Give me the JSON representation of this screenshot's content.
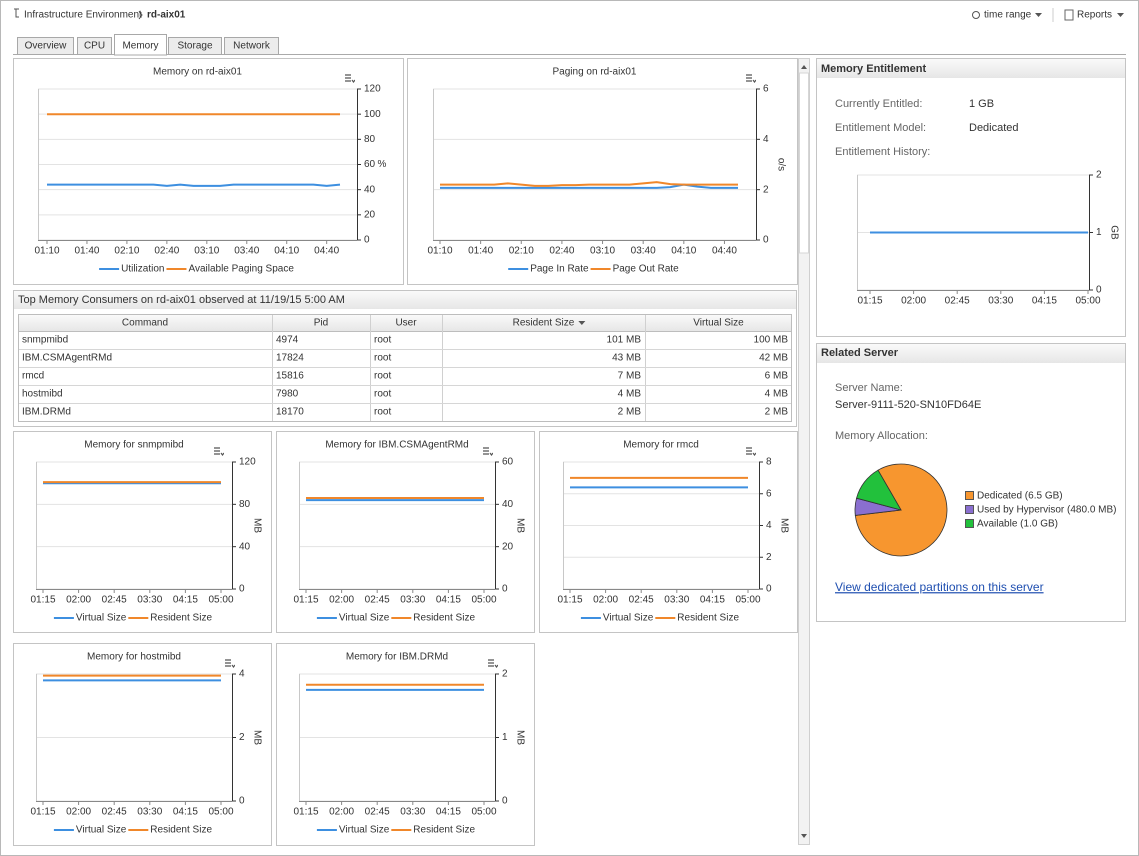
{
  "breadcrumb": {
    "parent": "Infrastructure Environment",
    "current": "rd-aix01"
  },
  "toolbar": [
    "time range",
    "Reports"
  ],
  "tabs": {
    "items": [
      "Overview",
      "CPU",
      "Memory",
      "Storage",
      "Network"
    ],
    "active": 2
  },
  "table": {
    "title": "Top Memory Consumers on rd-aix01 observed at 11/19/15 5:00 AM",
    "columns": [
      "Command",
      "Pid",
      "User",
      "Resident Size",
      "Virtual Size"
    ],
    "sort_column": 3,
    "rows": [
      [
        "snmpmibd",
        4974,
        "root",
        "101 MB",
        "100 MB"
      ],
      [
        "IBM.CSMAgentRMd",
        17824,
        "root",
        "43 MB",
        "42 MB"
      ],
      [
        "rmcd",
        15816,
        "root",
        "7 MB",
        "6 MB"
      ],
      [
        "hostmibd",
        7980,
        "root",
        "4 MB",
        "4 MB"
      ],
      [
        "IBM.DRMd",
        18170,
        "root",
        "2 MB",
        "2 MB"
      ]
    ]
  },
  "memory_entitlement": {
    "title": "Memory Entitlement",
    "fields": [
      {
        "label": "Currently Entitled:",
        "value": "1 GB"
      },
      {
        "label": "Entitlement Model:",
        "value": "Dedicated"
      }
    ],
    "history_label": "Entitlement History:"
  },
  "related_server": {
    "title": "Related Server",
    "server_name_label": "Server Name:",
    "server_name": "Server-9111-520-SN10FD64E",
    "allocation_label": "Memory Allocation:",
    "link": "View dedicated partitions on this server"
  },
  "chart_data": [
    {
      "type": "line",
      "title": "Memory on rd-aix01",
      "categories": [
        "01:10",
        null,
        null,
        "01:40",
        null,
        null,
        "02:10",
        null,
        null,
        "02:40",
        null,
        null,
        "03:10",
        null,
        null,
        "03:40",
        null,
        null,
        "04:10",
        null,
        null,
        "04:40",
        null
      ],
      "series": [
        {
          "name": "Utilization",
          "color": "#3d8fe0",
          "values": [
            44,
            44,
            44,
            44,
            44,
            44,
            44,
            44,
            44,
            43,
            44,
            43,
            43,
            43,
            44,
            44,
            44,
            44,
            44,
            44,
            44,
            43,
            44
          ]
        },
        {
          "name": "Available Paging Space",
          "color": "#f0872a",
          "values": [
            100,
            100,
            100,
            100,
            100,
            100,
            100,
            100,
            100,
            100,
            100,
            100,
            100,
            100,
            100,
            100,
            100,
            100,
            100,
            100,
            100,
            100,
            100
          ]
        }
      ],
      "ylim": [
        0,
        120
      ],
      "yticks": [
        0,
        20,
        40,
        60,
        80,
        100,
        120
      ],
      "ylabel": "%",
      "grid": true
    },
    {
      "type": "line",
      "title": "Paging on rd-aix01",
      "categories": [
        "01:10",
        null,
        null,
        "01:40",
        null,
        null,
        "02:10",
        null,
        null,
        "02:40",
        null,
        null,
        "03:10",
        null,
        null,
        "03:40",
        null,
        null,
        "04:10",
        null,
        null,
        "04:40",
        null
      ],
      "series": [
        {
          "name": "Page In Rate",
          "color": "#3d8fe0",
          "values": [
            2.07,
            2.07,
            2.07,
            2.07,
            2.07,
            2.07,
            2.07,
            2.07,
            2.07,
            2.07,
            2.07,
            2.07,
            2.07,
            2.07,
            2.07,
            2.07,
            2.07,
            2.1,
            2.2,
            2.12,
            2.07,
            2.07,
            2.07
          ]
        },
        {
          "name": "Page Out Rate",
          "color": "#f0872a",
          "values": [
            2.2,
            2.2,
            2.2,
            2.2,
            2.2,
            2.25,
            2.2,
            2.15,
            2.15,
            2.18,
            2.18,
            2.2,
            2.2,
            2.2,
            2.2,
            2.25,
            2.3,
            2.22,
            2.2,
            2.2,
            2.2,
            2.2,
            2.2
          ]
        }
      ],
      "ylim": [
        0,
        6
      ],
      "yticks": [
        0,
        2,
        4,
        6
      ],
      "ylabel": "o/s",
      "grid": true
    },
    {
      "type": "line",
      "categories": [
        "01:15",
        null,
        null,
        "02:00",
        null,
        null,
        "02:45",
        null,
        null,
        "03:30",
        null,
        null,
        "04:15",
        null,
        null,
        "05:00"
      ],
      "values": [
        1,
        1,
        1,
        1,
        1,
        1,
        1,
        1,
        1,
        1,
        1,
        1,
        1,
        1,
        1,
        1
      ],
      "color": "#3d8fe0",
      "ylim": [
        0,
        2
      ],
      "yticks": [
        0,
        1,
        2
      ],
      "ylabel": "GB",
      "grid": true
    },
    {
      "type": "line",
      "title": "Memory for snmpmibd",
      "categories": [
        "01:15",
        null,
        null,
        "02:00",
        null,
        null,
        "02:45",
        null,
        null,
        "03:30",
        null,
        null,
        "04:15",
        null,
        null,
        "05:00"
      ],
      "series": [
        {
          "name": "Virtual Size",
          "color": "#3d8fe0",
          "values": [
            100,
            100,
            100,
            100,
            100,
            100,
            100,
            100,
            100,
            100,
            100,
            100,
            100,
            100,
            100,
            100
          ]
        },
        {
          "name": "Resident Size",
          "color": "#f0872a",
          "values": [
            101,
            101,
            101,
            101,
            101,
            101,
            101,
            101,
            101,
            101,
            101,
            101,
            101,
            101,
            101,
            101
          ]
        }
      ],
      "ylim": [
        0,
        120
      ],
      "yticks": [
        0,
        40,
        80,
        120
      ],
      "ylabel": "MB",
      "grid": true
    },
    {
      "type": "line",
      "title": "Memory for IBM.CSMAgentRMd",
      "categories": [
        "01:15",
        null,
        null,
        "02:00",
        null,
        null,
        "02:45",
        null,
        null,
        "03:30",
        null,
        null,
        "04:15",
        null,
        null,
        "05:00"
      ],
      "series": [
        {
          "name": "Virtual Size",
          "color": "#3d8fe0",
          "values": [
            42,
            42,
            42,
            42,
            42,
            42,
            42,
            42,
            42,
            42,
            42,
            42,
            42,
            42,
            42,
            42
          ]
        },
        {
          "name": "Resident Size",
          "color": "#f0872a",
          "values": [
            43,
            43,
            43,
            43,
            43,
            43,
            43,
            43,
            43,
            43,
            43,
            43,
            43,
            43,
            43,
            43
          ]
        }
      ],
      "ylim": [
        0,
        60
      ],
      "yticks": [
        0,
        20,
        40,
        60
      ],
      "ylabel": "MB",
      "grid": true
    },
    {
      "type": "line",
      "title": "Memory for rmcd",
      "categories": [
        "01:15",
        null,
        null,
        "02:00",
        null,
        null,
        "02:45",
        null,
        null,
        "03:30",
        null,
        null,
        "04:15",
        null,
        null,
        "05:00"
      ],
      "series": [
        {
          "name": "Virtual Size",
          "color": "#3d8fe0",
          "values": [
            6.4,
            6.4,
            6.4,
            6.4,
            6.4,
            6.4,
            6.4,
            6.4,
            6.4,
            6.4,
            6.4,
            6.4,
            6.4,
            6.4,
            6.4,
            6.4
          ]
        },
        {
          "name": "Resident Size",
          "color": "#f0872a",
          "values": [
            7,
            7,
            7,
            7,
            7,
            7,
            7,
            7,
            7,
            7,
            7,
            7,
            7,
            7,
            7,
            7
          ]
        }
      ],
      "ylim": [
        0,
        8
      ],
      "yticks": [
        0,
        2,
        4,
        6,
        8
      ],
      "ylabel": "MB",
      "grid": true
    },
    {
      "type": "line",
      "title": "Memory for hostmibd",
      "categories": [
        "01:15",
        null,
        null,
        "02:00",
        null,
        null,
        "02:45",
        null,
        null,
        "03:30",
        null,
        null,
        "04:15",
        null,
        null,
        "05:00"
      ],
      "series": [
        {
          "name": "Virtual Size",
          "color": "#3d8fe0",
          "values": [
            3.8,
            3.8,
            3.8,
            3.8,
            3.8,
            3.8,
            3.8,
            3.8,
            3.8,
            3.8,
            3.8,
            3.8,
            3.8,
            3.8,
            3.8,
            3.8
          ]
        },
        {
          "name": "Resident Size",
          "color": "#f0872a",
          "values": [
            3.95,
            3.95,
            3.95,
            3.95,
            3.95,
            3.95,
            3.95,
            3.95,
            3.95,
            3.95,
            3.95,
            3.95,
            3.95,
            3.95,
            3.95,
            3.95
          ]
        }
      ],
      "ylim": [
        0,
        4
      ],
      "yticks": [
        0,
        2,
        4
      ],
      "ylabel": "MB",
      "grid": true
    },
    {
      "type": "line",
      "title": "Memory for IBM.DRMd",
      "categories": [
        "01:15",
        null,
        null,
        "02:00",
        null,
        null,
        "02:45",
        null,
        null,
        "03:30",
        null,
        null,
        "04:15",
        null,
        null,
        "05:00"
      ],
      "series": [
        {
          "name": "Virtual Size",
          "color": "#3d8fe0",
          "values": [
            1.75,
            1.75,
            1.75,
            1.75,
            1.75,
            1.75,
            1.75,
            1.75,
            1.75,
            1.75,
            1.75,
            1.75,
            1.75,
            1.75,
            1.75,
            1.75
          ]
        },
        {
          "name": "Resident Size",
          "color": "#f0872a",
          "values": [
            1.83,
            1.83,
            1.83,
            1.83,
            1.83,
            1.83,
            1.83,
            1.83,
            1.83,
            1.83,
            1.83,
            1.83,
            1.83,
            1.83,
            1.83,
            1.83
          ]
        }
      ],
      "ylim": [
        0,
        2
      ],
      "yticks": [
        0,
        1,
        2
      ],
      "ylabel": "MB",
      "grid": true
    },
    {
      "type": "pie",
      "categories": [
        "Dedicated (6.5 GB)",
        "Used by Hypervisor (480.0 MB)",
        "Available (1.0 GB)"
      ],
      "values": [
        6.5,
        0.48,
        1.0
      ],
      "colors": [
        "#f7962f",
        "#8a6fd0",
        "#22c13c"
      ]
    }
  ]
}
